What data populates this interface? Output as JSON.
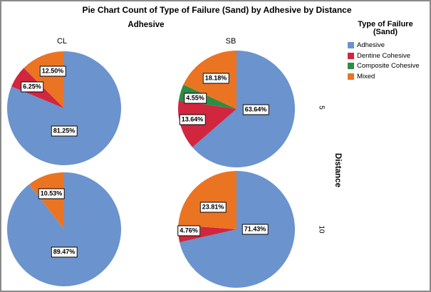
{
  "title": "Pie Chart Count of Type of Failure (Sand) by Adhesive by Distance",
  "legend": {
    "title_line1": "Type of Failure",
    "title_line2": "(Sand)",
    "items": [
      {
        "label": "Adhesive",
        "color": "#6B93CE"
      },
      {
        "label": "Dentine Cohesive",
        "color": "#D2263F"
      },
      {
        "label": "Composite Cohesive",
        "color": "#2E8C44"
      },
      {
        "label": "Mixed",
        "color": "#EB7423"
      }
    ]
  },
  "chart_data": {
    "type": "pie",
    "title": "Pie Chart Count of Type of Failure (Sand) by Adhesive by Distance",
    "column_variable": "Adhesive",
    "row_variable": "Distance",
    "panel_columns": [
      "CL",
      "SB"
    ],
    "panel_rows": [
      "5",
      "10"
    ],
    "categories": [
      "Adhesive",
      "Dentine Cohesive",
      "Composite Cohesive",
      "Mixed"
    ],
    "colors": {
      "Adhesive": "#6B93CE",
      "Dentine Cohesive": "#D2263F",
      "Composite Cohesive": "#2E8C44",
      "Mixed": "#EB7423"
    },
    "start_angle_deg": 0,
    "direction": "clockwise",
    "panels": [
      {
        "adhesive": "CL",
        "distance": "5",
        "slices": [
          {
            "category": "Adhesive",
            "value": 81.25,
            "label": "81.25%"
          },
          {
            "category": "Dentine Cohesive",
            "value": 6.25,
            "label": "6.25%"
          },
          {
            "category": "Mixed",
            "value": 12.5,
            "label": "12.50%"
          }
        ]
      },
      {
        "adhesive": "SB",
        "distance": "5",
        "slices": [
          {
            "category": "Adhesive",
            "value": 63.64,
            "label": "63.64%"
          },
          {
            "category": "Dentine Cohesive",
            "value": 13.64,
            "label": "13.64%"
          },
          {
            "category": "Composite Cohesive",
            "value": 4.55,
            "label": "4.55%"
          },
          {
            "category": "Mixed",
            "value": 18.18,
            "label": "18.18%"
          }
        ]
      },
      {
        "adhesive": "CL",
        "distance": "10",
        "slices": [
          {
            "category": "Adhesive",
            "value": 89.47,
            "label": "89.47%"
          },
          {
            "category": "Mixed",
            "value": 10.53,
            "label": "10.53%"
          }
        ]
      },
      {
        "adhesive": "SB",
        "distance": "10",
        "slices": [
          {
            "category": "Adhesive",
            "value": 71.43,
            "label": "71.43%"
          },
          {
            "category": "Dentine Cohesive",
            "value": 4.76,
            "label": "4.76%"
          },
          {
            "category": "Mixed",
            "value": 23.81,
            "label": "23.81%"
          }
        ]
      }
    ]
  }
}
